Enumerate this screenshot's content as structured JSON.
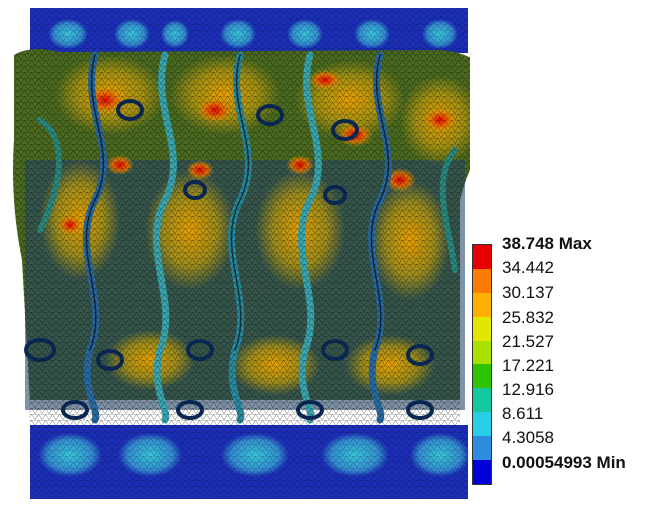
{
  "legend": {
    "max_label": "38.748 Max",
    "min_label": "0.00054993 Min",
    "ticks": [
      "34.442",
      "30.137",
      "25.832",
      "21.527",
      "17.221",
      "12.916",
      "8.611",
      "4.3058"
    ],
    "colors": [
      "#e60000",
      "#ff7a00",
      "#ffb000",
      "#e3e600",
      "#a8e000",
      "#2ec400",
      "#14c8a0",
      "#26cfe6",
      "#2f8be0",
      "#0000d8"
    ]
  },
  "model": {
    "background_color": "#1b2fb8",
    "mesh_color": "#000000"
  }
}
